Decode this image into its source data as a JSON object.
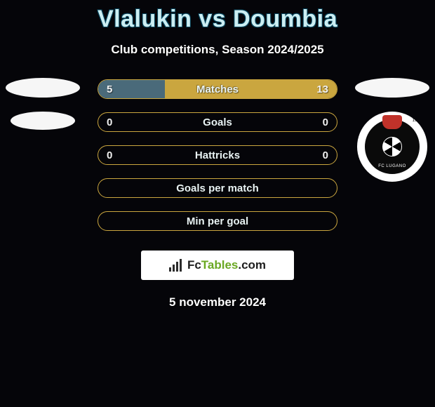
{
  "header": {
    "title": "Vlalukin vs Doumbia",
    "subtitle": "Club competitions, Season 2024/2025"
  },
  "bars": [
    {
      "label": "Matches",
      "left_value": "5",
      "right_value": "13",
      "border_color": "#caa63f",
      "left_fill_color": "#4a6a7a",
      "right_fill_color": "#caa63f",
      "left_fill_percent": 28,
      "right_fill_percent": 72
    },
    {
      "label": "Goals",
      "left_value": "0",
      "right_value": "0",
      "border_color": "#caa63f",
      "left_fill_color": "transparent",
      "right_fill_color": "transparent",
      "left_fill_percent": 0,
      "right_fill_percent": 0
    },
    {
      "label": "Hattricks",
      "left_value": "0",
      "right_value": "0",
      "border_color": "#caa63f",
      "left_fill_color": "transparent",
      "right_fill_color": "transparent",
      "left_fill_percent": 0,
      "right_fill_percent": 0
    },
    {
      "label": "Goals per match",
      "left_value": "",
      "right_value": "",
      "border_color": "#caa63f",
      "left_fill_color": "transparent",
      "right_fill_color": "transparent",
      "left_fill_percent": 0,
      "right_fill_percent": 0
    },
    {
      "label": "Min per goal",
      "left_value": "",
      "right_value": "",
      "border_color": "#caa63f",
      "left_fill_color": "transparent",
      "right_fill_color": "transparent",
      "left_fill_percent": 0,
      "right_fill_percent": 0
    }
  ],
  "footer": {
    "brand_prefix": "Fc",
    "brand_mid": "Tables",
    "brand_suffix": ".com",
    "date": "5 november 2024"
  },
  "right_club": {
    "name": "FC LUGANO",
    "year": "1908"
  },
  "colors": {
    "background": "#050509",
    "title_color": "#cceef2",
    "bar_label_color": "#e9f3f4"
  }
}
